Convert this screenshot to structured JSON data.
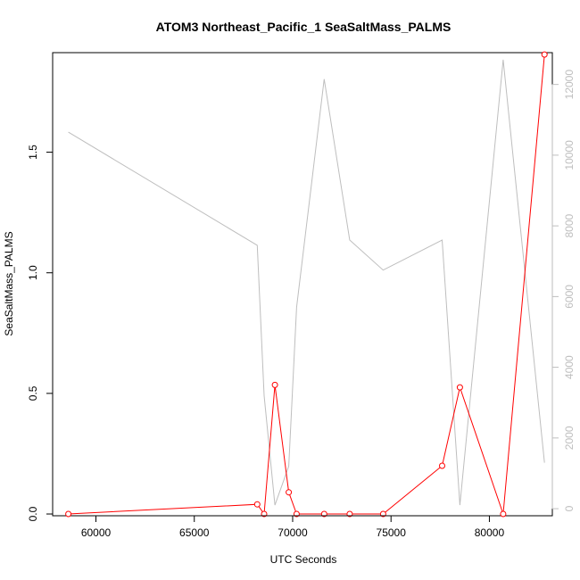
{
  "chart_data": {
    "type": "line",
    "title": "ATOM3 Northeast_Pacific_1 SeaSaltMass_PALMS",
    "xlabel": "UTC Seconds",
    "ylabel": "SeaSaltMass_PALMS",
    "y2label": "",
    "xlim": [
      57800,
      83200
    ],
    "ylim": [
      -0.0073,
      1.9127
    ],
    "y2lim": [
      -200,
      12900
    ],
    "x_ticks": [
      60000,
      65000,
      70000,
      75000,
      80000
    ],
    "y_ticks": [
      0.0,
      0.5,
      1.0,
      1.5
    ],
    "y_tick_labels": [
      "0.0",
      "0.5",
      "1.0",
      "1.5"
    ],
    "y2_ticks": [
      0,
      2000,
      4000,
      6000,
      8000,
      10000,
      12000
    ],
    "grid": false,
    "legend": "none",
    "series": [
      {
        "color": "#ff0000",
        "axis": "left",
        "marker": "open-circle",
        "x": [
          58600,
          68200,
          68550,
          69100,
          69800,
          70200,
          71600,
          72900,
          74600,
          77600,
          78500,
          80700,
          82800
        ],
        "y": [
          0.0,
          0.04,
          0.0,
          0.535,
          0.09,
          0.0,
          0.0,
          0.0,
          0.0,
          0.2,
          0.525,
          0.0,
          1.905
        ]
      },
      {
        "color": "#bebebe",
        "axis": "right",
        "marker": "none",
        "x": [
          58600,
          68200,
          68550,
          69100,
          69800,
          70200,
          71600,
          72900,
          74600,
          77600,
          78500,
          80700,
          82800
        ],
        "y": [
          10650,
          7450,
          3200,
          100,
          1200,
          5700,
          12150,
          7600,
          6750,
          7600,
          100,
          12700,
          1300
        ]
      }
    ]
  }
}
